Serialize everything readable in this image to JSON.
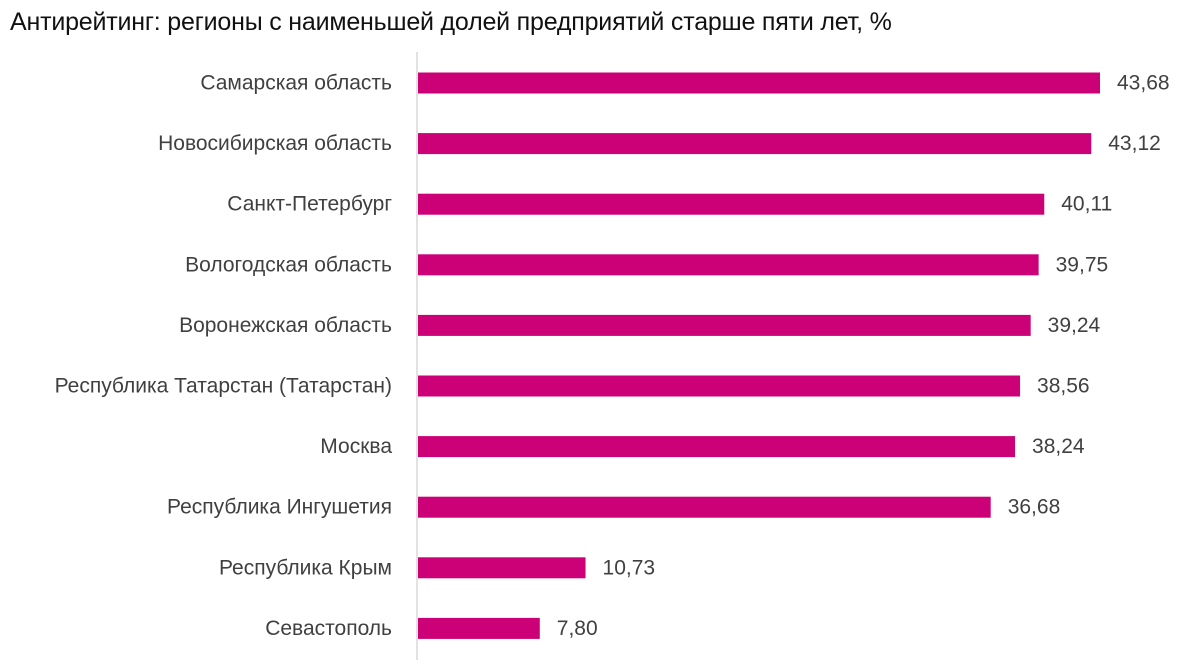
{
  "chart_data": {
    "type": "bar",
    "orientation": "horizontal",
    "title": "Антирейтинг: регионы с наименьшей долей предприятий старше пяти лет, %",
    "categories": [
      "Самарская область",
      "Новосибирская область",
      "Санкт-Петербург",
      "Вологодская область",
      "Воронежская область",
      "Республика Татарстан (Татарстан)",
      "Москва",
      "Республика Ингушетия",
      "Республика Крым",
      "Севастополь"
    ],
    "values": [
      43.68,
      43.12,
      40.11,
      39.75,
      39.24,
      38.56,
      38.24,
      36.68,
      10.73,
      7.8
    ],
    "value_labels": [
      "43,68",
      "43,12",
      "40,11",
      "39,75",
      "39,24",
      "38,56",
      "38,24",
      "36,68",
      "10,73",
      "7,80"
    ],
    "xlim": [
      0,
      43.68
    ],
    "bar_color": "#cc0077",
    "grid": false,
    "legend": "none"
  }
}
